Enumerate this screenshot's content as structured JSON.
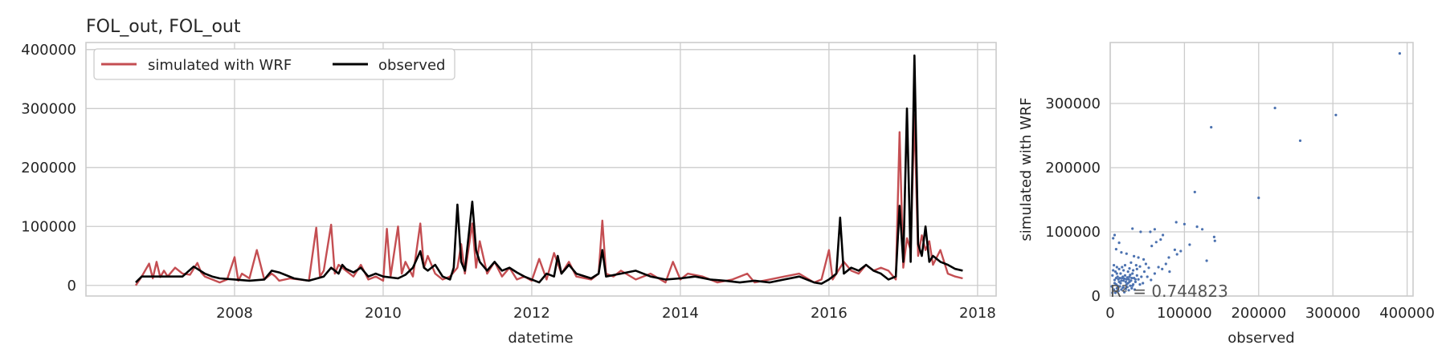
{
  "chart_data": [
    {
      "type": "line",
      "title": "FOL_out, FOL_out",
      "xlabel": "datetime",
      "ylabel": "",
      "xlim": [
        2006.0,
        2018.25
      ],
      "ylim": [
        -18000,
        412000
      ],
      "xticks": [
        2008,
        2010,
        2012,
        2014,
        2016,
        2018
      ],
      "yticks": [
        0,
        100000,
        200000,
        300000,
        400000
      ],
      "grid": true,
      "legend": "top-left",
      "series": [
        {
          "name": "simulated with WRF",
          "color": "#c44e52",
          "x": [
            2006.67,
            2006.75,
            2006.85,
            2006.9,
            2006.95,
            2007.0,
            2007.05,
            2007.1,
            2007.2,
            2007.3,
            2007.4,
            2007.5,
            2007.55,
            2007.6,
            2007.7,
            2007.8,
            2007.9,
            2008.0,
            2008.05,
            2008.1,
            2008.2,
            2008.3,
            2008.4,
            2008.5,
            2008.55,
            2008.6,
            2008.75,
            2009.0,
            2009.1,
            2009.15,
            2009.2,
            2009.3,
            2009.35,
            2009.4,
            2009.5,
            2009.6,
            2009.7,
            2009.8,
            2009.9,
            2010.0,
            2010.05,
            2010.1,
            2010.2,
            2010.25,
            2010.3,
            2010.4,
            2010.5,
            2010.55,
            2010.6,
            2010.7,
            2010.8,
            2010.9,
            2011.0,
            2011.05,
            2011.1,
            2011.2,
            2011.25,
            2011.3,
            2011.4,
            2011.5,
            2011.6,
            2011.7,
            2011.8,
            2011.9,
            2012.0,
            2012.1,
            2012.2,
            2012.3,
            2012.4,
            2012.5,
            2012.6,
            2012.8,
            2012.9,
            2012.95,
            2013.0,
            2013.1,
            2013.2,
            2013.4,
            2013.6,
            2013.8,
            2013.9,
            2014.0,
            2014.1,
            2014.3,
            2014.5,
            2014.7,
            2014.9,
            2015.0,
            2015.2,
            2015.4,
            2015.6,
            2015.8,
            2015.9,
            2016.0,
            2016.05,
            2016.1,
            2016.2,
            2016.3,
            2016.4,
            2016.5,
            2016.6,
            2016.7,
            2016.8,
            2016.9,
            2016.95,
            2017.0,
            2017.05,
            2017.1,
            2017.15,
            2017.2,
            2017.25,
            2017.3,
            2017.35,
            2017.4,
            2017.5,
            2017.6,
            2017.7,
            2017.8
          ],
          "y": [
            0,
            15000,
            37000,
            12000,
            40000,
            14000,
            25000,
            15000,
            30000,
            20000,
            18000,
            38000,
            22000,
            15000,
            10000,
            5000,
            10000,
            48000,
            8000,
            20000,
            12000,
            60000,
            10000,
            20000,
            15000,
            8000,
            12000,
            8000,
            98000,
            15000,
            25000,
            103000,
            20000,
            35000,
            25000,
            15000,
            35000,
            10000,
            15000,
            8000,
            96000,
            15000,
            100000,
            20000,
            40000,
            15000,
            105000,
            30000,
            50000,
            20000,
            10000,
            15000,
            30000,
            70000,
            20000,
            105000,
            30000,
            75000,
            20000,
            40000,
            15000,
            30000,
            10000,
            15000,
            8000,
            45000,
            10000,
            55000,
            20000,
            40000,
            15000,
            10000,
            20000,
            110000,
            20000,
            15000,
            25000,
            10000,
            20000,
            5000,
            40000,
            10000,
            20000,
            15000,
            5000,
            10000,
            20000,
            5000,
            10000,
            15000,
            20000,
            5000,
            10000,
            60000,
            10000,
            20000,
            40000,
            25000,
            20000,
            35000,
            25000,
            30000,
            25000,
            10000,
            260000,
            30000,
            80000,
            60000,
            290000,
            50000,
            85000,
            60000,
            75000,
            35000,
            60000,
            20000,
            15000,
            12000
          ],
          "values_note_only_visible": ""
        },
        {
          "name": "observed",
          "color": "#000000",
          "x": [
            2006.67,
            2006.75,
            2007.0,
            2007.3,
            2007.45,
            2007.5,
            2007.6,
            2007.7,
            2007.8,
            2008.0,
            2008.2,
            2008.4,
            2008.5,
            2008.6,
            2008.8,
            2009.0,
            2009.2,
            2009.3,
            2009.4,
            2009.45,
            2009.5,
            2009.6,
            2009.7,
            2009.8,
            2009.9,
            2010.0,
            2010.2,
            2010.3,
            2010.4,
            2010.5,
            2010.55,
            2010.6,
            2010.7,
            2010.8,
            2010.9,
            2010.95,
            2011.0,
            2011.05,
            2011.1,
            2011.2,
            2011.25,
            2011.3,
            2011.4,
            2011.5,
            2011.6,
            2011.7,
            2011.8,
            2011.9,
            2012.0,
            2012.1,
            2012.2,
            2012.3,
            2012.35,
            2012.4,
            2012.5,
            2012.6,
            2012.8,
            2012.9,
            2012.95,
            2013.0,
            2013.2,
            2013.4,
            2013.6,
            2013.8,
            2014.0,
            2014.2,
            2014.4,
            2014.6,
            2014.8,
            2015.0,
            2015.2,
            2015.4,
            2015.6,
            2015.8,
            2015.9,
            2016.0,
            2016.1,
            2016.15,
            2016.2,
            2016.3,
            2016.4,
            2016.5,
            2016.6,
            2016.7,
            2016.8,
            2016.9,
            2016.95,
            2017.0,
            2017.05,
            2017.1,
            2017.15,
            2017.2,
            2017.25,
            2017.3,
            2017.35,
            2017.4,
            2017.5,
            2017.6,
            2017.7,
            2017.8
          ],
          "y": [
            5000,
            15000,
            15000,
            15000,
            32000,
            28000,
            20000,
            15000,
            12000,
            10000,
            8000,
            10000,
            25000,
            22000,
            12000,
            8000,
            15000,
            30000,
            20000,
            35000,
            28000,
            22000,
            30000,
            15000,
            20000,
            15000,
            12000,
            18000,
            30000,
            58000,
            30000,
            25000,
            35000,
            15000,
            10000,
            30000,
            137000,
            40000,
            25000,
            142000,
            60000,
            40000,
            25000,
            40000,
            25000,
            30000,
            22000,
            15000,
            10000,
            5000,
            20000,
            15000,
            50000,
            20000,
            35000,
            20000,
            12000,
            20000,
            60000,
            15000,
            20000,
            25000,
            15000,
            10000,
            12000,
            15000,
            10000,
            8000,
            5000,
            8000,
            5000,
            10000,
            15000,
            5000,
            3000,
            10000,
            20000,
            115000,
            20000,
            30000,
            25000,
            35000,
            25000,
            20000,
            10000,
            15000,
            135000,
            40000,
            300000,
            40000,
            390000,
            70000,
            50000,
            100000,
            40000,
            50000,
            40000,
            35000,
            28000,
            25000
          ]
        }
      ]
    },
    {
      "type": "scatter",
      "title": "",
      "xlabel": "observed",
      "ylabel": "simulated with WRF",
      "xlim": [
        0,
        408000
      ],
      "ylim": [
        0,
        395000
      ],
      "xticks": [
        0,
        100000,
        200000,
        300000,
        400000
      ],
      "yticks": [
        0,
        100000,
        200000,
        300000
      ],
      "grid": true,
      "color": "#4c72b0",
      "annotation": "R² = 0.744823",
      "points": [
        [
          390000,
          378000
        ],
        [
          222000,
          293000
        ],
        [
          304000,
          282000
        ],
        [
          136000,
          263000
        ],
        [
          256000,
          242000
        ],
        [
          200000,
          153000
        ],
        [
          114000,
          162000
        ],
        [
          100000,
          112000
        ],
        [
          89000,
          115000
        ],
        [
          124000,
          104000
        ],
        [
          140000,
          92000
        ],
        [
          141000,
          86000
        ],
        [
          117000,
          108000
        ],
        [
          107000,
          80000
        ],
        [
          87000,
          72000
        ],
        [
          79000,
          60000
        ],
        [
          62000,
          84000
        ],
        [
          56000,
          78000
        ],
        [
          68000,
          88000
        ],
        [
          71000,
          95000
        ],
        [
          60000,
          104000
        ],
        [
          54000,
          100000
        ],
        [
          41000,
          100000
        ],
        [
          30000,
          105000
        ],
        [
          6000,
          95000
        ],
        [
          4000,
          90000
        ],
        [
          12000,
          83000
        ],
        [
          8000,
          73000
        ],
        [
          15000,
          68000
        ],
        [
          22000,
          66000
        ],
        [
          32000,
          62000
        ],
        [
          38000,
          60000
        ],
        [
          45000,
          57000
        ],
        [
          48000,
          50000
        ],
        [
          52000,
          44000
        ],
        [
          35000,
          48000
        ],
        [
          28000,
          52000
        ],
        [
          26000,
          43000
        ],
        [
          20000,
          48000
        ],
        [
          18000,
          40000
        ],
        [
          9000,
          45000
        ],
        [
          4000,
          40000
        ],
        [
          3000,
          32000
        ],
        [
          6000,
          25000
        ],
        [
          8000,
          18000
        ],
        [
          10000,
          30000
        ],
        [
          12000,
          22000
        ],
        [
          14000,
          35000
        ],
        [
          16000,
          28000
        ],
        [
          18000,
          24000
        ],
        [
          20000,
          32000
        ],
        [
          22000,
          26000
        ],
        [
          24000,
          20000
        ],
        [
          26000,
          30000
        ],
        [
          28000,
          24000
        ],
        [
          30000,
          35000
        ],
        [
          32000,
          28000
        ],
        [
          34000,
          22000
        ],
        [
          36000,
          32000
        ],
        [
          38000,
          26000
        ],
        [
          40000,
          18000
        ],
        [
          42000,
          30000
        ],
        [
          44000,
          20000
        ],
        [
          46000,
          38000
        ],
        [
          50000,
          30000
        ],
        [
          55000,
          25000
        ],
        [
          60000,
          35000
        ],
        [
          65000,
          45000
        ],
        [
          70000,
          42000
        ],
        [
          75000,
          50000
        ],
        [
          80000,
          38000
        ],
        [
          90000,
          65000
        ],
        [
          95000,
          70000
        ],
        [
          130000,
          55000
        ],
        [
          5000,
          10000
        ],
        [
          7000,
          5000
        ],
        [
          9000,
          12000
        ],
        [
          11000,
          8000
        ],
        [
          13000,
          15000
        ],
        [
          15000,
          10000
        ],
        [
          17000,
          13000
        ],
        [
          19000,
          6000
        ],
        [
          21000,
          11000
        ],
        [
          23000,
          14000
        ],
        [
          25000,
          9000
        ],
        [
          27000,
          16000
        ],
        [
          29000,
          12000
        ],
        [
          31000,
          18000
        ],
        [
          33000,
          10000
        ],
        [
          3000,
          5000
        ],
        [
          2000,
          15000
        ],
        [
          6000,
          20000
        ],
        [
          10000,
          16000
        ],
        [
          14000,
          20000
        ],
        [
          18000,
          14000
        ],
        [
          22000,
          18000
        ],
        [
          26000,
          22000
        ],
        [
          30000,
          16000
        ],
        [
          34000,
          26000
        ],
        [
          11000,
          26000
        ],
        [
          13000,
          28000
        ],
        [
          15000,
          24000
        ],
        [
          17000,
          30000
        ],
        [
          19000,
          27000
        ],
        [
          21000,
          22000
        ],
        [
          23000,
          29000
        ],
        [
          25000,
          26000
        ],
        [
          27000,
          33000
        ],
        [
          29000,
          28000
        ],
        [
          8000,
          28000
        ],
        [
          9000,
          35000
        ],
        [
          7000,
          38000
        ],
        [
          5000,
          48000
        ],
        [
          12000,
          42000
        ],
        [
          16000,
          45000
        ],
        [
          24000,
          38000
        ],
        [
          31000,
          40000
        ],
        [
          36000,
          42000
        ],
        [
          40000,
          46000
        ]
      ]
    }
  ]
}
